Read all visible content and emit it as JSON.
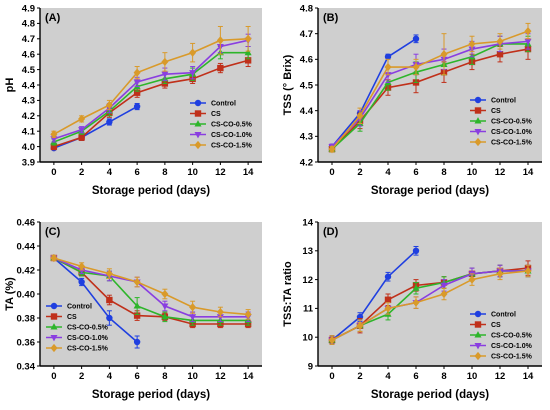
{
  "colors": {
    "Control": "#1f3fe0",
    "CS": "#c0301a",
    "CS-CO-0.5%": "#2db52a",
    "CS-CO-1.0%": "#8a3ee0",
    "CS-CO-1.5%": "#d99a2a",
    "plot_background": "#cfcfcf"
  },
  "chart_data": [
    {
      "type": "line",
      "panel": "(A)",
      "xlabel": "Storage period (days)",
      "ylabel": "pH",
      "xlim": [
        -1,
        15
      ],
      "ylim": [
        3.9,
        4.9
      ],
      "xticks": [
        0,
        2,
        4,
        6,
        8,
        10,
        12,
        14
      ],
      "yticks": [
        3.9,
        4.0,
        4.1,
        4.2,
        4.3,
        4.4,
        4.5,
        4.6,
        4.7,
        4.8,
        4.9
      ],
      "ytick_labels": [
        "3.9",
        "4.0",
        "4.1",
        "4.2",
        "4.3",
        "4.4",
        "4.5",
        "4.6",
        "4.7",
        "4.8",
        "4.9"
      ],
      "legend_position": "right-center",
      "series": [
        {
          "name": "Control",
          "marker": "circle",
          "x": [
            0,
            2,
            4,
            6
          ],
          "values": [
            3.99,
            4.06,
            4.16,
            4.26
          ],
          "err": [
            0.01,
            0.02,
            0.02,
            0.02
          ]
        },
        {
          "name": "CS",
          "marker": "square",
          "x": [
            0,
            2,
            4,
            6,
            8,
            10,
            12,
            14
          ],
          "values": [
            4.0,
            4.06,
            4.22,
            4.35,
            4.41,
            4.44,
            4.51,
            4.56
          ],
          "err": [
            0.02,
            0.02,
            0.03,
            0.03,
            0.03,
            0.03,
            0.03,
            0.04
          ]
        },
        {
          "name": "CS-CO-0.5%",
          "marker": "triangle-up",
          "x": [
            0,
            2,
            4,
            6,
            8,
            10,
            12,
            14
          ],
          "values": [
            4.03,
            4.1,
            4.23,
            4.39,
            4.44,
            4.47,
            4.61,
            4.61
          ],
          "err": [
            0.02,
            0.02,
            0.03,
            0.03,
            0.03,
            0.04,
            0.04,
            0.04
          ]
        },
        {
          "name": "CS-CO-1.0%",
          "marker": "triangle-down",
          "x": [
            0,
            2,
            4,
            6,
            8,
            10,
            12,
            14
          ],
          "values": [
            4.05,
            4.11,
            4.25,
            4.42,
            4.47,
            4.48,
            4.65,
            4.69
          ],
          "err": [
            0.02,
            0.02,
            0.03,
            0.03,
            0.04,
            0.04,
            0.04,
            0.04
          ]
        },
        {
          "name": "CS-CO-1.5%",
          "marker": "diamond",
          "x": [
            0,
            2,
            4,
            6,
            8,
            10,
            12,
            14
          ],
          "values": [
            4.08,
            4.18,
            4.27,
            4.48,
            4.55,
            4.61,
            4.69,
            4.7
          ],
          "err": [
            0.02,
            0.02,
            0.03,
            0.04,
            0.06,
            0.06,
            0.09,
            0.08
          ]
        }
      ]
    },
    {
      "type": "line",
      "panel": "(B)",
      "xlabel": "Storage period (days)",
      "ylabel": "TSS (° Brix)",
      "xlim": [
        -1,
        15
      ],
      "ylim": [
        4.2,
        4.8
      ],
      "xticks": [
        0,
        2,
        4,
        6,
        8,
        10,
        12,
        14
      ],
      "yticks": [
        4.2,
        4.3,
        4.4,
        4.5,
        4.6,
        4.7,
        4.8
      ],
      "ytick_labels": [
        "4.2",
        "4.3",
        "4.4",
        "4.5",
        "4.6",
        "4.7",
        "4.8"
      ],
      "legend_position": "bottom-right",
      "series": [
        {
          "name": "Control",
          "marker": "circle",
          "x": [
            0,
            2,
            4,
            6
          ],
          "values": [
            4.26,
            4.39,
            4.61,
            4.68
          ],
          "err": [
            0.01,
            0.01,
            0.01,
            0.015
          ]
        },
        {
          "name": "CS",
          "marker": "square",
          "x": [
            0,
            2,
            4,
            6,
            8,
            10,
            12,
            14
          ],
          "values": [
            4.25,
            4.36,
            4.49,
            4.51,
            4.55,
            4.59,
            4.62,
            4.64
          ],
          "err": [
            0.01,
            0.03,
            0.03,
            0.04,
            0.04,
            0.03,
            0.03,
            0.04
          ]
        },
        {
          "name": "CS-CO-0.5%",
          "marker": "triangle-up",
          "x": [
            0,
            2,
            4,
            6,
            8,
            10,
            12,
            14
          ],
          "values": [
            4.25,
            4.35,
            4.51,
            4.55,
            4.58,
            4.61,
            4.66,
            4.66
          ],
          "err": [
            0.01,
            0.03,
            0.03,
            0.04,
            0.04,
            0.03,
            0.03,
            0.03
          ]
        },
        {
          "name": "CS-CO-1.0%",
          "marker": "triangle-down",
          "x": [
            0,
            2,
            4,
            6,
            8,
            10,
            12,
            14
          ],
          "values": [
            4.26,
            4.37,
            4.54,
            4.58,
            4.6,
            4.64,
            4.66,
            4.67
          ],
          "err": [
            0.01,
            0.03,
            0.03,
            0.04,
            0.04,
            0.03,
            0.03,
            0.03
          ]
        },
        {
          "name": "CS-CO-1.5%",
          "marker": "diamond",
          "x": [
            0,
            2,
            4,
            6,
            8,
            10,
            12,
            14
          ],
          "values": [
            4.25,
            4.38,
            4.57,
            4.57,
            4.62,
            4.66,
            4.67,
            4.71
          ],
          "err": [
            0.01,
            0.03,
            0.03,
            0.03,
            0.08,
            0.03,
            0.03,
            0.03
          ]
        }
      ]
    },
    {
      "type": "line",
      "panel": "(C)",
      "xlabel": "Storage period (days)",
      "ylabel": "TA (%)",
      "xlim": [
        -1,
        15
      ],
      "ylim": [
        0.34,
        0.46
      ],
      "xticks": [
        0,
        2,
        4,
        6,
        8,
        10,
        12,
        14
      ],
      "yticks": [
        0.34,
        0.36,
        0.38,
        0.4,
        0.42,
        0.44,
        0.46
      ],
      "ytick_labels": [
        "0.34",
        "0.36",
        "0.38",
        "0.40",
        "0.42",
        "0.44",
        "0.46"
      ],
      "legend_position": "bottom-left",
      "series": [
        {
          "name": "Control",
          "marker": "circle",
          "x": [
            0,
            2,
            4,
            6
          ],
          "values": [
            0.43,
            0.41,
            0.38,
            0.36
          ],
          "err": [
            0.002,
            0.003,
            0.006,
            0.005
          ]
        },
        {
          "name": "CS",
          "marker": "square",
          "x": [
            0,
            2,
            4,
            6,
            8,
            10,
            12,
            14
          ],
          "values": [
            0.43,
            0.418,
            0.395,
            0.382,
            0.381,
            0.375,
            0.375,
            0.375
          ],
          "err": [
            0.002,
            0.003,
            0.004,
            0.004,
            0.003,
            0.003,
            0.003,
            0.003
          ]
        },
        {
          "name": "CS-CO-0.5%",
          "marker": "triangle-up",
          "x": [
            0,
            2,
            4,
            6,
            8,
            10,
            12,
            14
          ],
          "values": [
            0.43,
            0.418,
            0.415,
            0.39,
            0.381,
            0.378,
            0.378,
            0.378
          ],
          "err": [
            0.002,
            0.003,
            0.004,
            0.007,
            0.004,
            0.004,
            0.004,
            0.004
          ]
        },
        {
          "name": "CS-CO-1.0%",
          "marker": "triangle-down",
          "x": [
            0,
            2,
            4,
            6,
            8,
            10,
            12,
            14
          ],
          "values": [
            0.43,
            0.42,
            0.415,
            0.41,
            0.39,
            0.381,
            0.381,
            0.381
          ],
          "err": [
            0.002,
            0.003,
            0.004,
            0.004,
            0.004,
            0.004,
            0.004,
            0.004
          ]
        },
        {
          "name": "CS-CO-1.5%",
          "marker": "diamond",
          "x": [
            0,
            2,
            4,
            6,
            8,
            10,
            12,
            14
          ],
          "values": [
            0.43,
            0.423,
            0.417,
            0.41,
            0.4,
            0.389,
            0.385,
            0.383
          ],
          "err": [
            0.002,
            0.003,
            0.004,
            0.004,
            0.004,
            0.005,
            0.004,
            0.004
          ]
        }
      ]
    },
    {
      "type": "line",
      "panel": "(D)",
      "xlabel": "Storage period (days)",
      "ylabel": "TSS:TA ratio",
      "xlim": [
        -1,
        15
      ],
      "ylim": [
        9,
        14
      ],
      "xticks": [
        0,
        2,
        4,
        6,
        8,
        10,
        12,
        14
      ],
      "yticks": [
        9,
        10,
        11,
        12,
        13,
        14
      ],
      "ytick_labels": [
        "9",
        "10",
        "11",
        "12",
        "13",
        "14"
      ],
      "legend_position": "bottom-right",
      "series": [
        {
          "name": "Control",
          "marker": "circle",
          "x": [
            0,
            2,
            4,
            6
          ],
          "values": [
            9.9,
            10.7,
            12.1,
            13.0
          ],
          "err": [
            0.1,
            0.15,
            0.15,
            0.15
          ]
        },
        {
          "name": "CS",
          "marker": "square",
          "x": [
            0,
            2,
            4,
            6,
            8,
            10,
            12,
            14
          ],
          "values": [
            9.9,
            10.4,
            11.3,
            11.8,
            11.9,
            12.2,
            12.3,
            12.4
          ],
          "err": [
            0.15,
            0.25,
            0.2,
            0.2,
            0.2,
            0.2,
            0.2,
            0.25
          ]
        },
        {
          "name": "CS-CO-0.5%",
          "marker": "triangle-up",
          "x": [
            0,
            2,
            4,
            6,
            8,
            10,
            12,
            14
          ],
          "values": [
            9.9,
            10.4,
            10.8,
            11.7,
            11.9,
            12.2,
            12.3,
            12.3
          ],
          "err": [
            0.15,
            0.2,
            0.2,
            0.2,
            0.2,
            0.2,
            0.2,
            0.2
          ]
        },
        {
          "name": "CS-CO-1.0%",
          "marker": "triangle-down",
          "x": [
            0,
            2,
            4,
            6,
            8,
            10,
            12,
            14
          ],
          "values": [
            9.9,
            10.4,
            11.0,
            11.2,
            11.8,
            12.2,
            12.3,
            12.3
          ],
          "err": [
            0.15,
            0.2,
            0.2,
            0.2,
            0.2,
            0.2,
            0.2,
            0.2
          ]
        },
        {
          "name": "CS-CO-1.5%",
          "marker": "diamond",
          "x": [
            0,
            2,
            4,
            6,
            8,
            10,
            12,
            14
          ],
          "values": [
            9.9,
            10.4,
            11.0,
            11.2,
            11.5,
            12.0,
            12.2,
            12.3
          ],
          "err": [
            0.15,
            0.2,
            0.2,
            0.2,
            0.2,
            0.2,
            0.2,
            0.2
          ]
        }
      ]
    }
  ]
}
